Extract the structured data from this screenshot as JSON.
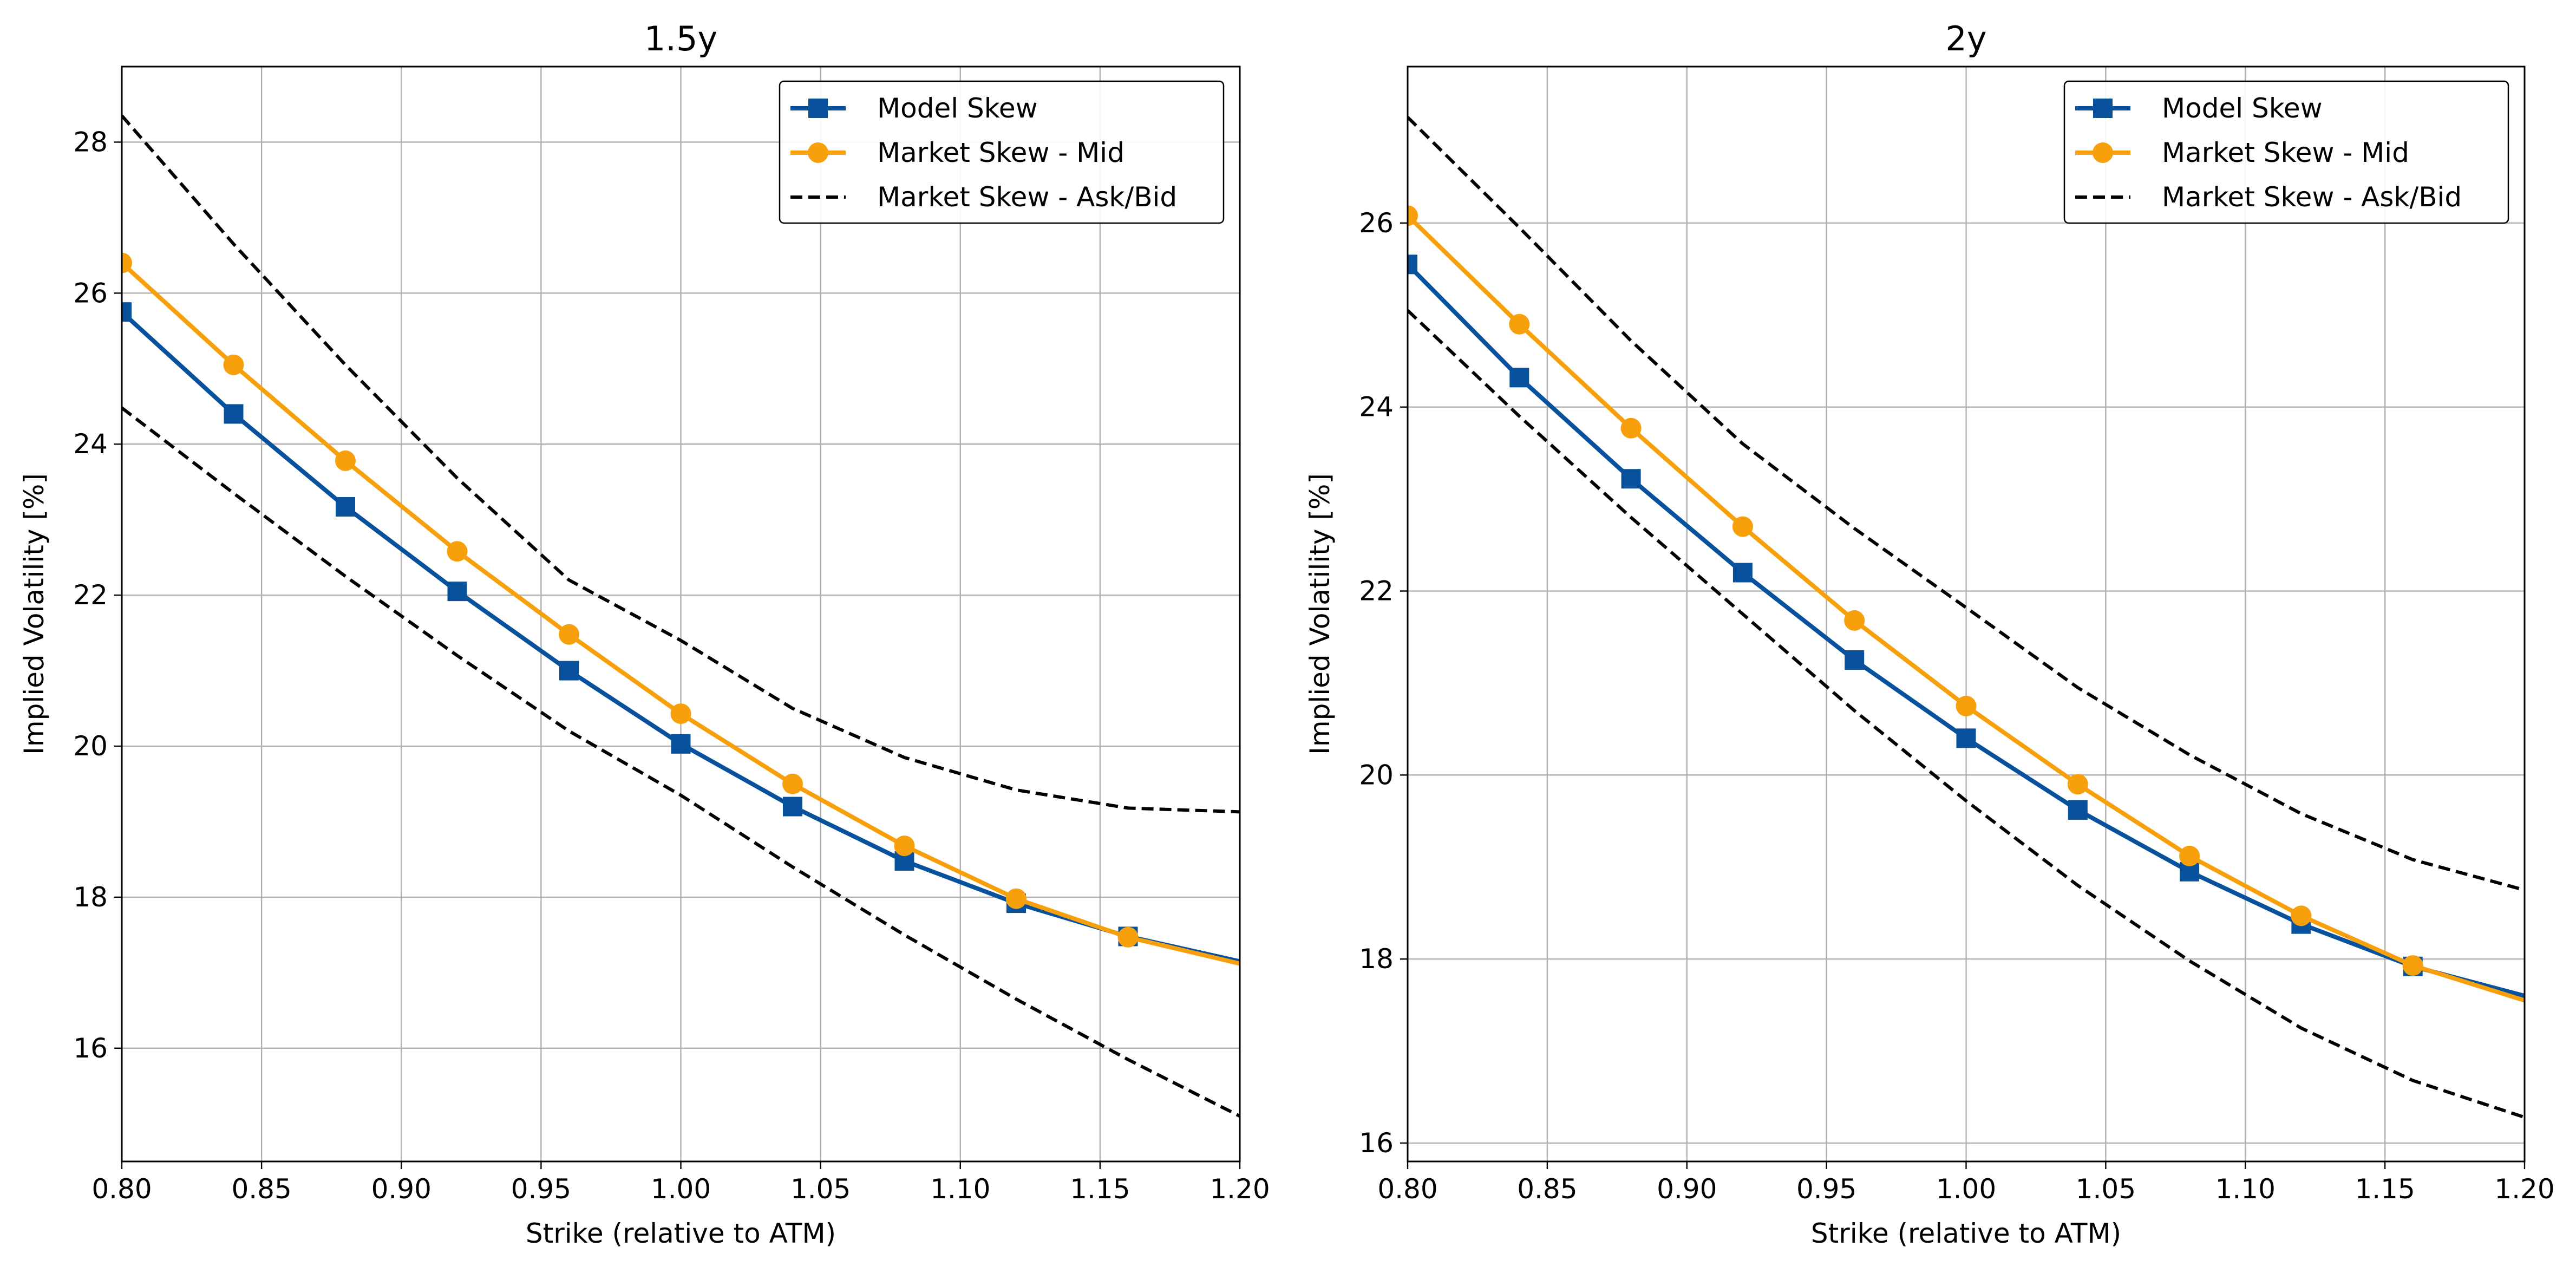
{
  "chart_data": [
    {
      "type": "line",
      "title": "1.5y",
      "xlabel": "Strike (relative to ATM)",
      "ylabel": "Implied Volatility [%]",
      "xlim": [
        0.8,
        1.2
      ],
      "ylim": [
        14.5,
        29.0
      ],
      "xticks": [
        0.8,
        0.85,
        0.9,
        0.95,
        1.0,
        1.05,
        1.1,
        1.15,
        1.2
      ],
      "xtick_labels": [
        "0.80",
        "0.85",
        "0.90",
        "0.95",
        "1.00",
        "1.05",
        "1.10",
        "1.15",
        "1.20"
      ],
      "yticks": [
        16,
        18,
        20,
        22,
        24,
        26,
        28
      ],
      "ytick_labels": [
        "16",
        "18",
        "20",
        "22",
        "24",
        "26",
        "28"
      ],
      "grid": true,
      "legend_position": "upper right",
      "series": [
        {
          "name": "Model Skew",
          "color": "#08519c",
          "marker": "square",
          "linestyle": "solid",
          "x": [
            0.8,
            0.84,
            0.88,
            0.92,
            0.96,
            1.0,
            1.04,
            1.08,
            1.12,
            1.16,
            1.2
          ],
          "y": [
            25.75,
            24.4,
            23.17,
            22.05,
            21.0,
            20.03,
            19.2,
            18.48,
            17.92,
            17.48,
            17.15
          ],
          "markers_at": [
            0.8,
            0.84,
            0.88,
            0.92,
            0.96,
            1.0,
            1.04,
            1.08,
            1.12,
            1.16
          ]
        },
        {
          "name": "Market Skew - Mid",
          "color": "#f7a00c",
          "marker": "circle",
          "linestyle": "solid",
          "x": [
            0.8,
            0.84,
            0.88,
            0.92,
            0.96,
            1.0,
            1.04,
            1.08,
            1.12,
            1.16,
            1.2
          ],
          "y": [
            26.4,
            25.05,
            23.78,
            22.58,
            21.48,
            20.43,
            19.5,
            18.68,
            17.98,
            17.47,
            17.12
          ],
          "markers_at": [
            0.8,
            0.84,
            0.88,
            0.92,
            0.96,
            1.0,
            1.04,
            1.08,
            1.12,
            1.16
          ]
        },
        {
          "name": "Market Skew - Ask/Bid",
          "color": "#000000",
          "marker": "none",
          "linestyle": "dashed",
          "x": [
            0.8,
            0.84,
            0.88,
            0.92,
            0.96,
            1.0,
            1.04,
            1.08,
            1.12,
            1.16,
            1.2
          ],
          "y": [
            28.35,
            26.65,
            25.05,
            23.55,
            22.2,
            21.4,
            20.5,
            19.85,
            19.42,
            19.18,
            19.13
          ]
        },
        {
          "name": "Market Skew - Ask/Bid",
          "color": "#000000",
          "marker": "none",
          "linestyle": "dashed",
          "legend": false,
          "x": [
            0.8,
            0.84,
            0.88,
            0.92,
            0.96,
            1.0,
            1.04,
            1.08,
            1.12,
            1.16,
            1.2
          ],
          "y": [
            24.48,
            23.35,
            22.25,
            21.2,
            20.2,
            19.35,
            18.4,
            17.5,
            16.65,
            15.85,
            15.1
          ]
        }
      ]
    },
    {
      "type": "line",
      "title": "2y",
      "xlabel": "Strike (relative to ATM)",
      "ylabel": "Implied Volatility [%]",
      "xlim": [
        0.8,
        1.2
      ],
      "ylim": [
        15.8,
        27.7
      ],
      "xticks": [
        0.8,
        0.85,
        0.9,
        0.95,
        1.0,
        1.05,
        1.1,
        1.15,
        1.2
      ],
      "xtick_labels": [
        "0.80",
        "0.85",
        "0.90",
        "0.95",
        "1.00",
        "1.05",
        "1.10",
        "1.15",
        "1.20"
      ],
      "yticks": [
        16,
        18,
        20,
        22,
        24,
        26
      ],
      "ytick_labels": [
        "16",
        "18",
        "20",
        "22",
        "24",
        "26"
      ],
      "grid": true,
      "legend_position": "upper right",
      "series": [
        {
          "name": "Model Skew",
          "color": "#08519c",
          "marker": "square",
          "linestyle": "solid",
          "x": [
            0.8,
            0.84,
            0.88,
            0.92,
            0.96,
            1.0,
            1.04,
            1.08,
            1.12,
            1.16,
            1.2
          ],
          "y": [
            25.55,
            24.32,
            23.22,
            22.2,
            21.25,
            20.4,
            19.62,
            18.95,
            18.38,
            17.92,
            17.6
          ],
          "markers_at": [
            0.8,
            0.84,
            0.88,
            0.92,
            0.96,
            1.0,
            1.04,
            1.08,
            1.12,
            1.16
          ]
        },
        {
          "name": "Market Skew - Mid",
          "color": "#f7a00c",
          "marker": "circle",
          "linestyle": "solid",
          "x": [
            0.8,
            0.84,
            0.88,
            0.92,
            0.96,
            1.0,
            1.04,
            1.08,
            1.12,
            1.16,
            1.2
          ],
          "y": [
            26.08,
            24.9,
            23.77,
            22.7,
            21.68,
            20.75,
            19.9,
            19.12,
            18.47,
            17.93,
            17.55
          ],
          "markers_at": [
            0.8,
            0.84,
            0.88,
            0.92,
            0.96,
            1.0,
            1.04,
            1.08,
            1.12,
            1.16
          ]
        },
        {
          "name": "Market Skew - Ask/Bid",
          "color": "#000000",
          "marker": "none",
          "linestyle": "dashed",
          "x": [
            0.8,
            0.84,
            0.88,
            0.92,
            0.96,
            1.0,
            1.04,
            1.08,
            1.12,
            1.16,
            1.2
          ],
          "y": [
            27.15,
            25.95,
            24.72,
            23.6,
            22.68,
            21.82,
            20.95,
            20.22,
            19.58,
            19.08,
            18.75
          ]
        },
        {
          "name": "Market Skew - Ask/Bid",
          "color": "#000000",
          "marker": "none",
          "linestyle": "dashed",
          "legend": false,
          "x": [
            0.8,
            0.84,
            0.88,
            0.92,
            0.96,
            1.0,
            1.04,
            1.08,
            1.12,
            1.16,
            1.2
          ],
          "y": [
            25.05,
            23.9,
            22.8,
            21.75,
            20.7,
            19.72,
            18.8,
            17.98,
            17.25,
            16.68,
            16.28
          ]
        }
      ]
    }
  ]
}
